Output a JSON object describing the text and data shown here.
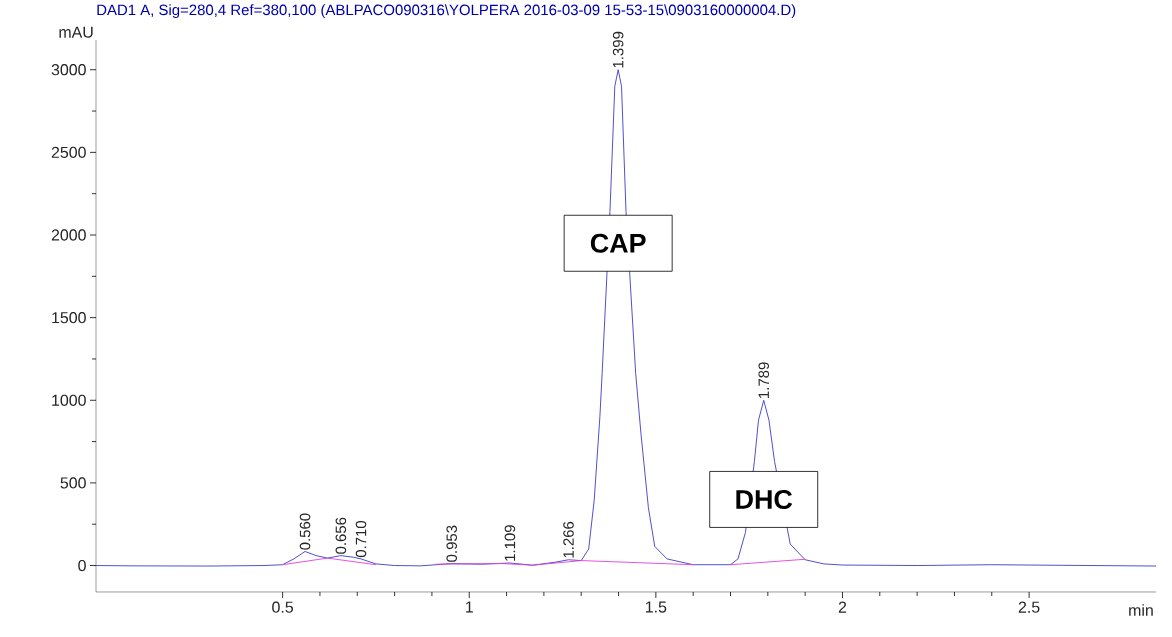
{
  "chart_data": {
    "type": "line",
    "title": "DAD1 A, Sig=280,4 Ref=380,100 (ABLPACO090316\\YOLPERA 2016-03-09 15-53-15\\0903160000004.D)",
    "xlabel": "min",
    "ylabel": "mAU",
    "series": [
      {
        "color": "#3c3cc8",
        "x": [
          0,
          0.1,
          0.3,
          0.45,
          0.5,
          0.53,
          0.56,
          0.59,
          0.62,
          0.656,
          0.69,
          0.71,
          0.75,
          0.8,
          0.87,
          0.953,
          1.03,
          1.109,
          1.17,
          1.23,
          1.266,
          1.3,
          1.32,
          1.335,
          1.35,
          1.356,
          1.377,
          1.39,
          1.399,
          1.408,
          1.42,
          1.446,
          1.46,
          1.48,
          1.497,
          1.53,
          1.6,
          1.7,
          1.72,
          1.74,
          1.764,
          1.775,
          1.789,
          1.803,
          1.818,
          1.86,
          1.9,
          1.95,
          2.0,
          2.2,
          2.4,
          2.5,
          2.84
        ],
        "values": [
          0,
          -2,
          -3,
          0,
          5,
          40,
          85,
          60,
          45,
          60,
          50,
          40,
          10,
          0,
          -2,
          12,
          8,
          15,
          2,
          20,
          35,
          30,
          100,
          400,
          900,
          1160,
          2143,
          2900,
          3000,
          2900,
          2143,
          1160,
          800,
          350,
          116,
          40,
          5,
          5,
          40,
          200,
          630,
          880,
          1000,
          880,
          630,
          130,
          35,
          10,
          3,
          0,
          5,
          3,
          -3
        ]
      },
      {
        "color": "#e040e0",
        "x": [
          0.5,
          0.62,
          0.75,
          0.8,
          0.91,
          1.09,
          1.17,
          1.3,
          1.6,
          1.65,
          1.7,
          1.9
        ],
        "values": [
          5,
          45,
          5,
          null,
          8,
          12,
          2,
          30,
          5,
          null,
          5,
          38
        ]
      }
    ],
    "xlim": [
      0,
      2.84
    ],
    "ylim": [
      -160,
      3180
    ],
    "xticks": [
      0.5,
      1,
      1.5,
      2,
      2.5
    ],
    "yticks": [
      0,
      500,
      1000,
      1500,
      2000,
      2500,
      3000
    ],
    "marker": "none",
    "line_style": "solid",
    "grid": false,
    "annotations": [
      {
        "text": "0.560",
        "x": 0.56,
        "y": 85
      },
      {
        "text": "0.656",
        "x": 0.656,
        "y": 60
      },
      {
        "text": "0.710",
        "x": 0.71,
        "y": 40
      },
      {
        "text": "0.953",
        "x": 0.953,
        "y": 12
      },
      {
        "text": "1.109",
        "x": 1.109,
        "y": 15
      },
      {
        "text": "1.266",
        "x": 1.266,
        "y": 35
      },
      {
        "text": "1.399",
        "x": 1.399,
        "y": 3000
      },
      {
        "text": "1.789",
        "x": 1.789,
        "y": 1000
      },
      "CAP",
      "DHC"
    ]
  }
}
